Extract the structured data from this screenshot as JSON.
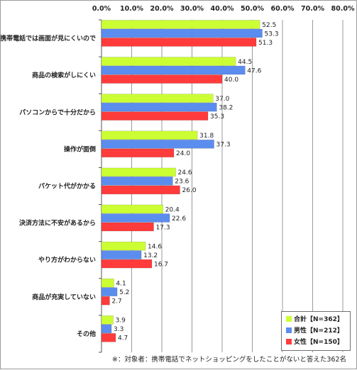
{
  "chart_data": {
    "type": "bar",
    "orientation": "horizontal",
    "categories": [
      "携帯電話では画面が見にくいので",
      "商品の検索がしにくい",
      "パソコンからで十分だから",
      "操作が面倒",
      "パケット代がかかる",
      "決済方法に不安があるから",
      "やり方がわからない",
      "商品が充実していない",
      "その他"
    ],
    "series": [
      {
        "name": "合計【N=362】",
        "color": "#ccff33",
        "values": [
          52.5,
          44.5,
          37.0,
          31.8,
          24.6,
          20.4,
          14.6,
          4.1,
          3.9
        ]
      },
      {
        "name": "男性【N=212】",
        "color": "#5b8def",
        "values": [
          53.3,
          47.6,
          38.2,
          37.3,
          23.6,
          22.6,
          13.2,
          5.2,
          3.3
        ]
      },
      {
        "name": "女性【N=150】",
        "color": "#ff3b3b",
        "values": [
          51.3,
          40.0,
          35.3,
          24.0,
          26.0,
          17.3,
          16.7,
          2.7,
          4.7
        ]
      }
    ],
    "xlim": [
      0,
      80
    ],
    "tick_labels": [
      "0.0%",
      "10.0%",
      "20.0%",
      "30.0%",
      "40.0%",
      "50.0%",
      "60.0%",
      "70.0%",
      "80.0%"
    ],
    "grid": true,
    "legend_position": "bottom-right"
  },
  "footnote": "※：対象者：携帯電話でネットショッピングをしたことがないと答えた362名"
}
